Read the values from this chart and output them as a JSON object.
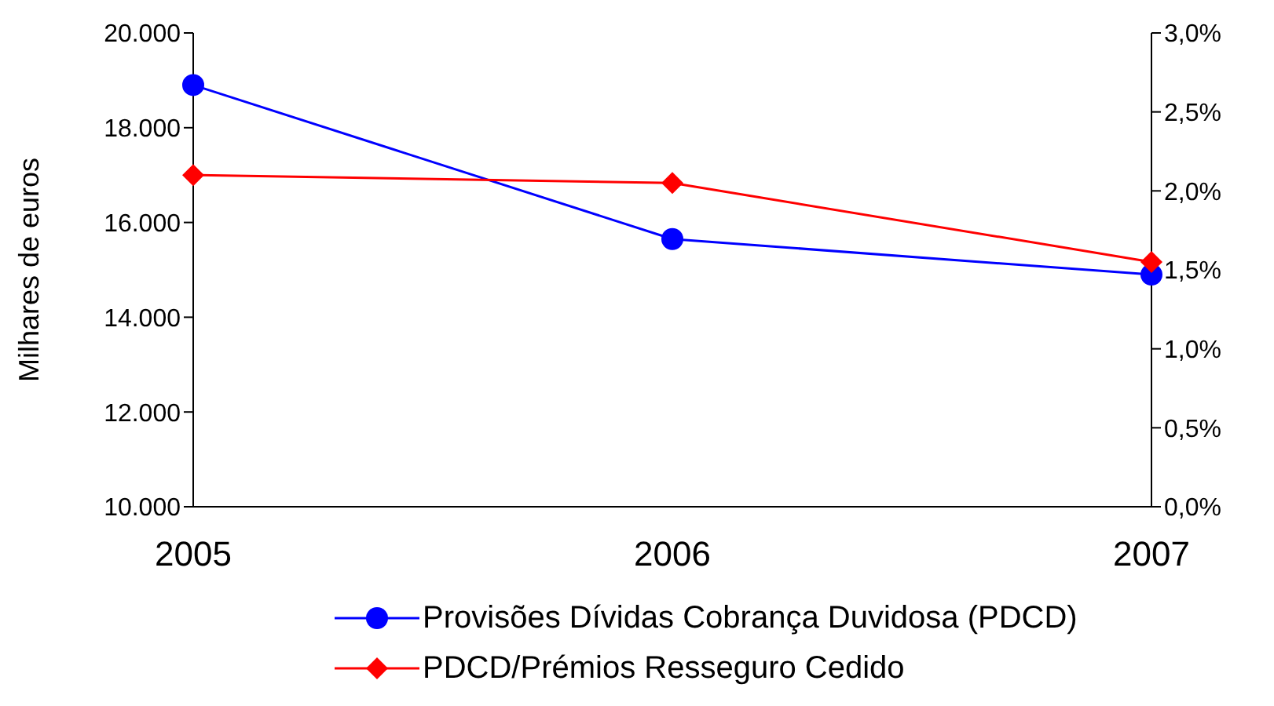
{
  "chart_data": {
    "type": "line",
    "categories": [
      "2005",
      "2006",
      "2007"
    ],
    "ylabel": "Milhares de euros",
    "series": [
      {
        "name": "Provisões Dívidas Cobrança Duvidosa (PDCD)",
        "color": "#0000ff",
        "marker": "circle",
        "values": [
          18900,
          15650,
          14900
        ]
      },
      {
        "name": "PDCD/Prémios Resseguro Cedido",
        "color": "#ff0000",
        "marker": "diamond",
        "axis": "y2",
        "values": [
          2.1,
          2.05,
          1.55
        ]
      }
    ],
    "ylim": [
      10000,
      20000
    ],
    "yticks": [
      {
        "value": 10000,
        "label": "10.000"
      },
      {
        "value": 12000,
        "label": "12.000"
      },
      {
        "value": 14000,
        "label": "14.000"
      },
      {
        "value": 16000,
        "label": "16.000"
      },
      {
        "value": 18000,
        "label": "18.000"
      },
      {
        "value": 20000,
        "label": "20.000"
      }
    ],
    "y2lim": [
      0,
      3
    ],
    "y2ticks": [
      {
        "value": 0,
        "label": "0,0%"
      },
      {
        "value": 0.5,
        "label": "0,5%"
      },
      {
        "value": 1,
        "label": "1,0%"
      },
      {
        "value": 1.5,
        "label": "1,5%"
      },
      {
        "value": 2,
        "label": "2,0%"
      },
      {
        "value": 2.5,
        "label": "2,5%"
      },
      {
        "value": 3,
        "label": "3,0%"
      }
    ],
    "grid": false,
    "legend": "bottom",
    "line_style": "solid"
  }
}
